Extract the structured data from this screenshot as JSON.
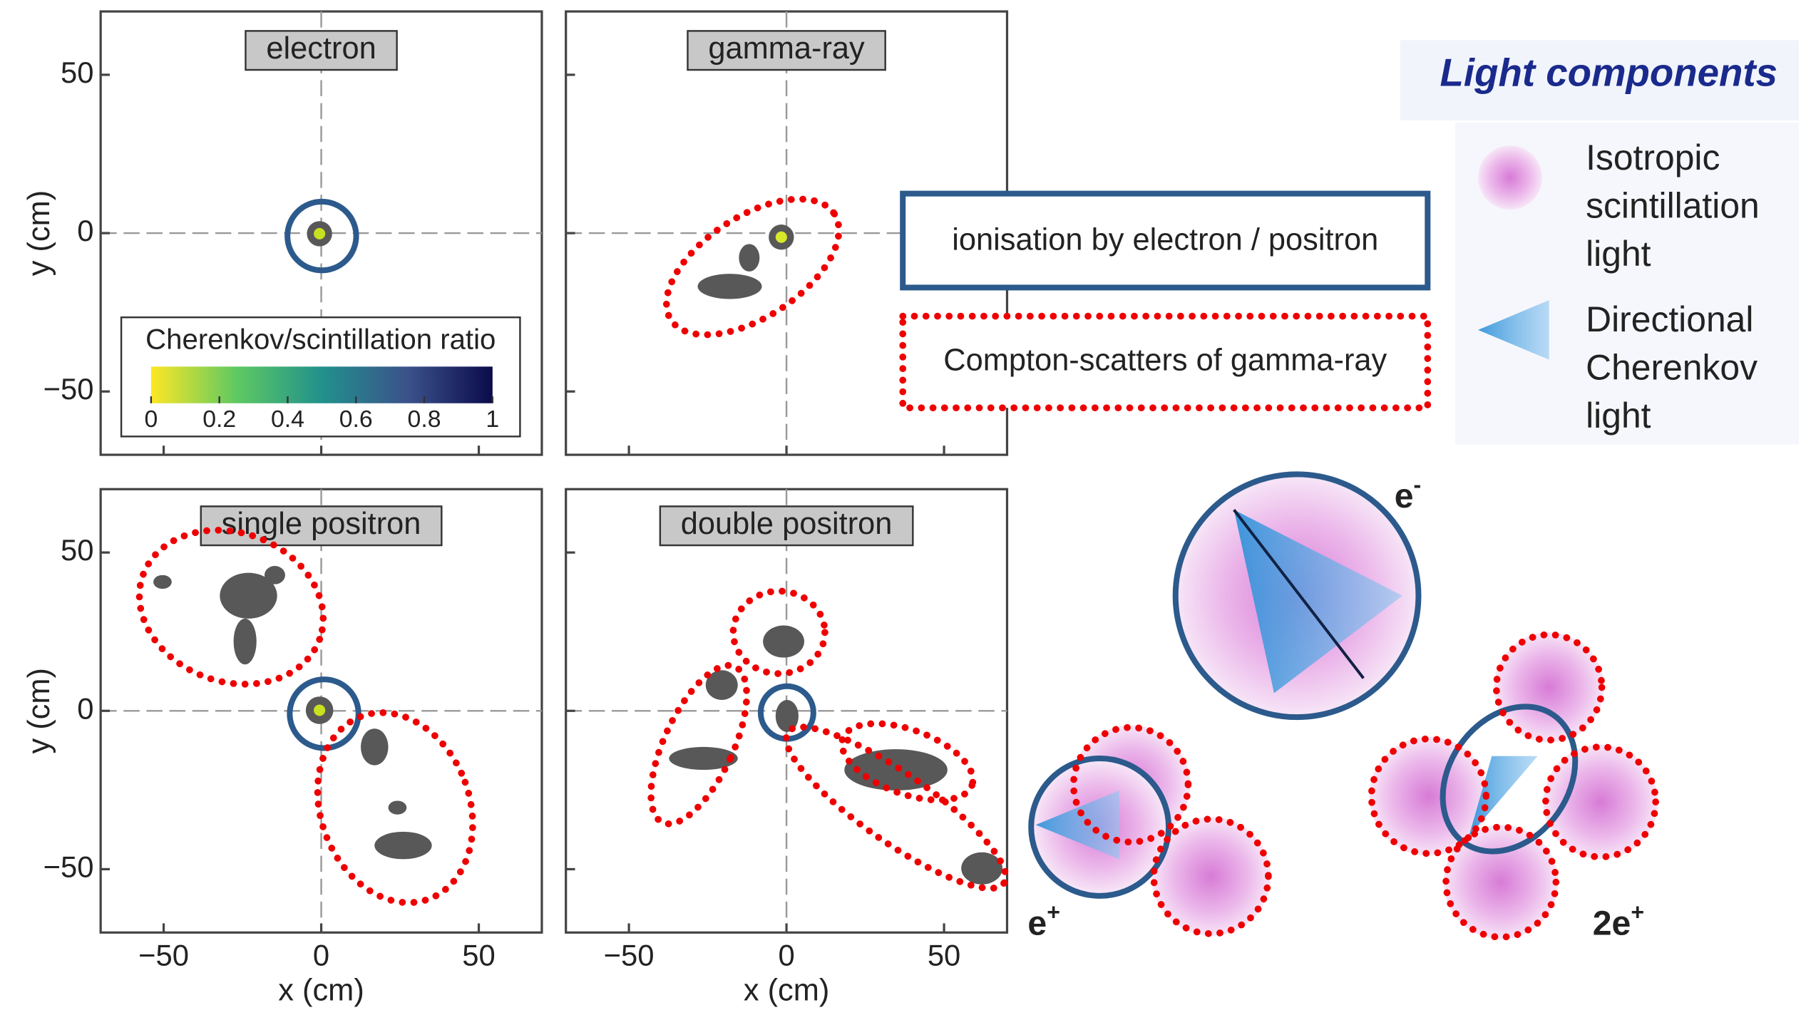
{
  "panels": [
    {
      "title": "electron"
    },
    {
      "title": "gamma-ray"
    },
    {
      "title": "single positron"
    },
    {
      "title": "double positron"
    }
  ],
  "axes": {
    "xlabel": "x (cm)",
    "ylabel": "y (cm)",
    "xlim": [
      -70,
      70
    ],
    "ylim": [
      -70,
      70
    ],
    "xticks": [
      {
        "value": -50,
        "label": "−50"
      },
      0,
      50
    ],
    "yticks": [
      {
        "value": -50,
        "label": "−50"
      },
      0,
      50
    ]
  },
  "colorbar": {
    "label": "Cherenkov/scintillation ratio",
    "ticks": [
      0,
      0.2,
      0.4,
      0.6,
      0.8,
      1
    ]
  },
  "annotations": {
    "ionisation": "ionisation by electron / positron",
    "compton": "Compton-scatters of gamma-ray"
  },
  "legend": {
    "title": "Light components",
    "items": [
      {
        "lines": [
          "Isotropic",
          "scintillation",
          "light"
        ]
      },
      {
        "lines": [
          "Directional",
          "Cherenkov",
          "light"
        ]
      }
    ]
  },
  "diagram_labels": {
    "electron": "e",
    "electron_sup": "-",
    "positron": "e",
    "positron_sup": "+",
    "double": "2e",
    "double_sup": "+"
  }
}
